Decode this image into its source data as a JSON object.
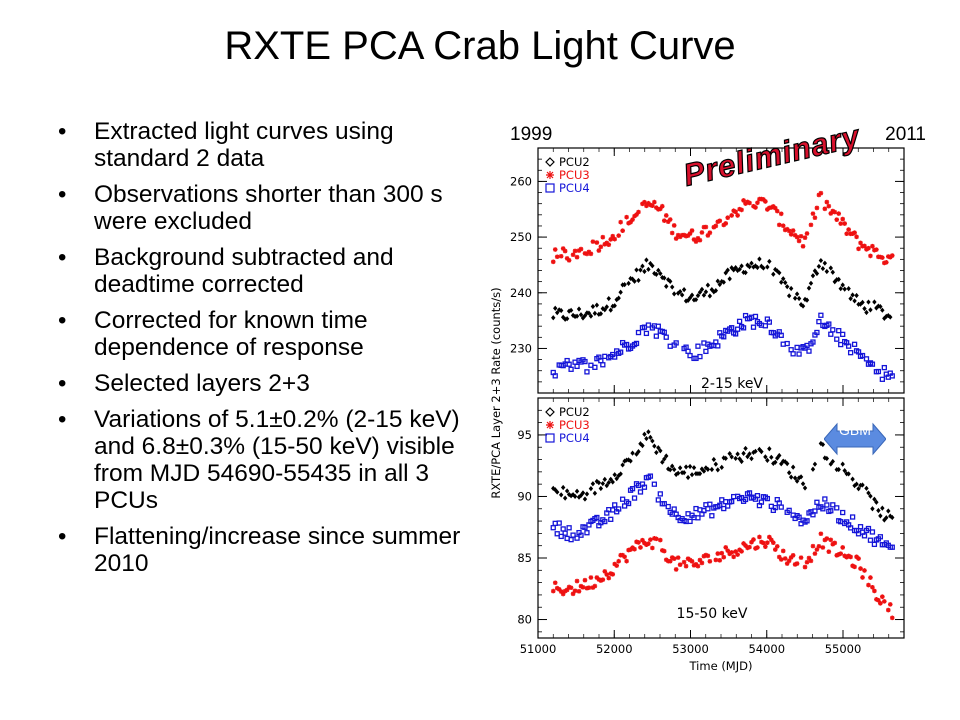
{
  "title": "RXTE PCA Crab Light Curve",
  "bullets": [
    "Extracted light curves using standard 2 data",
    "Observations shorter than 300 s were excluded",
    "Background subtracted and deadtime corrected",
    "Corrected for known time dependence of response",
    "Selected layers 2+3",
    "Variations of 5.1±0.2% (2-15 keV) and 6.8±0.3% (15-50 keV) visible from MJD 54690-55435 in all 3 PCUs",
    "Flattening/increase since summer 2010"
  ],
  "stamp": "Preliminary",
  "badge": "GBM",
  "colors": {
    "PCU2": "#000000",
    "PCU3": "#ee1111",
    "PCU4": "#1515d8"
  },
  "chart_data": {
    "type": "scatter",
    "year_labels": [
      "1999",
      "2011"
    ],
    "xlabel": "Time (MJD)",
    "ylabel": "RXTE/PCA Layer 2+3 Rate (counts/s)",
    "xlim": [
      51000,
      55800
    ],
    "xticks": [
      51000,
      52000,
      53000,
      54000,
      55000
    ],
    "panels": [
      {
        "band": "2-15 keV",
        "ylim": [
          222,
          266
        ],
        "yticks": [
          230,
          240,
          250,
          260
        ],
        "legend": "top-left",
        "series": [
          {
            "name": "PCU2",
            "marker": "diamond",
            "x": [
              51200,
              51450,
              51700,
              51950,
              52200,
              52450,
              52600,
              52800,
              53050,
              53300,
              53500,
              53750,
              54000,
              54250,
              54500,
              54700,
              54950,
              55200,
              55450,
              55650
            ],
            "y": [
              236,
              236,
              236.5,
              238,
              242,
              245,
              244,
              240,
              239,
              241,
              243,
              245,
              245,
              241,
              238,
              246,
              242,
              238,
              237,
              235.5
            ]
          },
          {
            "name": "PCU3",
            "marker": "asterisk",
            "x": [
              51200,
              51450,
              51700,
              51950,
              52200,
              52450,
              52600,
              52800,
              53050,
              53300,
              53500,
              53750,
              54000,
              54250,
              54500,
              54700,
              54950,
              55200,
              55450,
              55650
            ],
            "y": [
              246.5,
              247,
              248,
              250,
              253,
              256,
              255,
              251,
              250,
              252,
              254,
              256,
              256,
              252,
              249,
              257,
              253,
              249,
              247,
              245.5
            ]
          },
          {
            "name": "PCU4",
            "marker": "square",
            "x": [
              51200,
              51450,
              51700,
              51950,
              52200,
              52450,
              52600,
              52800,
              53050,
              53300,
              53500,
              53750,
              54000,
              54250,
              54500,
              54700,
              54950,
              55200,
              55450,
              55650
            ],
            "y": [
              226,
              227,
              227,
              228.5,
              231,
              234,
              233,
              230.5,
              229,
              231,
              233,
              235,
              235,
              231,
              229,
              235,
              232,
              229,
              226,
              225
            ]
          }
        ]
      },
      {
        "band": "15-50 keV",
        "ylim": [
          78.5,
          98
        ],
        "yticks": [
          80,
          85,
          90,
          95
        ],
        "legend": "top-left",
        "series": [
          {
            "name": "PCU2",
            "marker": "diamond",
            "x": [
              51200,
              51450,
              51700,
              51950,
              52200,
              52450,
              52600,
              52800,
              53050,
              53300,
              53500,
              53750,
              54000,
              54250,
              54500,
              54700,
              54950,
              55200,
              55450,
              55650
            ],
            "y": [
              90.5,
              90,
              90.5,
              91.5,
              93,
              95,
              93.5,
              92,
              92,
              92.5,
              93,
              93.5,
              93.5,
              92.5,
              91,
              94,
              92.5,
              91,
              89,
              88
            ]
          },
          {
            "name": "PCU3",
            "marker": "asterisk",
            "x": [
              51200,
              51450,
              51700,
              51950,
              52200,
              52450,
              52600,
              52800,
              53050,
              53300,
              53500,
              53750,
              54000,
              54250,
              54500,
              54700,
              54950,
              55200,
              55450,
              55650
            ],
            "y": [
              82.5,
              82.5,
              83,
              84,
              85.5,
              86.5,
              86,
              84.5,
              84.5,
              85,
              85.5,
              86,
              86.5,
              85,
              84.5,
              86.5,
              85.5,
              84.5,
              82,
              80.5
            ]
          },
          {
            "name": "PCU4",
            "marker": "square",
            "x": [
              51200,
              51450,
              51700,
              51950,
              52200,
              52450,
              52600,
              52800,
              53050,
              53300,
              53500,
              53750,
              54000,
              54250,
              54500,
              54700,
              54950,
              55200,
              55450,
              55650
            ],
            "y": [
              87.5,
              87,
              87.5,
              88.5,
              90,
              91.5,
              90,
              88.5,
              88.5,
              89,
              89.5,
              90,
              89.5,
              89,
              88,
              89.5,
              88.5,
              87.5,
              86.5,
              85.5
            ]
          }
        ]
      }
    ]
  }
}
